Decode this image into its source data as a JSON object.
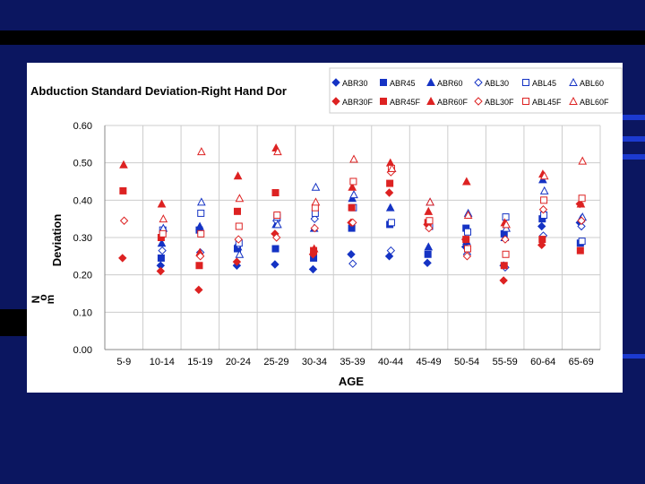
{
  "chart_data": {
    "type": "scatter",
    "title": "Abduction Standard Deviation-Right Hand Dor",
    "xlabel": "AGE",
    "ylabel": "Deviation",
    "ylabel_units": [
      "N",
      "o",
      "m"
    ],
    "ylim": [
      0,
      0.6
    ],
    "yticks": [
      "0.00",
      "0.10",
      "0.20",
      "0.30",
      "0.40",
      "0.50",
      "0.60"
    ],
    "grid": true,
    "categories": [
      "5-9",
      "10-14",
      "15-19",
      "20-24",
      "25-29",
      "30-34",
      "35-39",
      "40-44",
      "45-49",
      "50-54",
      "55-59",
      "60-64",
      "65-69"
    ],
    "legend_position": "top-right",
    "series": [
      {
        "name": "ABR30",
        "color": "#1533c4",
        "marker": "diamond",
        "filled": true,
        "values": [
          null,
          0.225,
          null,
          0.225,
          0.228,
          0.215,
          0.255,
          0.25,
          0.232,
          0.275,
          0.225,
          0.33,
          0.34
        ]
      },
      {
        "name": "ABR45",
        "color": "#1533c4",
        "marker": "square",
        "filled": true,
        "values": [
          null,
          0.245,
          0.32,
          0.27,
          0.27,
          0.245,
          0.325,
          0.335,
          0.255,
          0.325,
          0.31,
          0.35,
          0.285
        ]
      },
      {
        "name": "ABR60",
        "color": "#1533c4",
        "marker": "triangle",
        "filled": true,
        "values": [
          null,
          0.285,
          0.33,
          0.275,
          0.335,
          0.325,
          0.405,
          0.38,
          0.275,
          0.29,
          0.3,
          0.455,
          0.35
        ]
      },
      {
        "name": "ABL30",
        "color": "#1533c4",
        "marker": "diamond",
        "filled": false,
        "values": [
          null,
          0.265,
          0.26,
          0.28,
          0.345,
          0.35,
          0.23,
          0.265,
          null,
          0.255,
          0.22,
          0.305,
          0.33
        ]
      },
      {
        "name": "ABL45",
        "color": "#1533c4",
        "marker": "square",
        "filled": false,
        "values": [
          null,
          0.32,
          0.365,
          0.285,
          0.355,
          0.365,
          0.38,
          0.34,
          0.33,
          0.315,
          0.355,
          0.36,
          0.29
        ]
      },
      {
        "name": "ABL60",
        "color": "#1533c4",
        "marker": "triangle",
        "filled": false,
        "values": [
          null,
          0.325,
          0.395,
          0.255,
          0.335,
          0.435,
          0.415,
          0.485,
          0.395,
          0.365,
          0.325,
          0.425,
          0.355
        ]
      },
      {
        "name": "ABR30F",
        "color": "#dd2222",
        "marker": "diamond",
        "filled": true,
        "values": [
          0.245,
          0.21,
          0.16,
          0.235,
          0.31,
          0.255,
          0.34,
          0.42,
          0.335,
          0.295,
          0.185,
          0.28,
          0.39
        ]
      },
      {
        "name": "ABR45F",
        "color": "#dd2222",
        "marker": "square",
        "filled": true,
        "values": [
          0.425,
          0.3,
          0.225,
          0.37,
          0.42,
          0.265,
          0.38,
          0.445,
          0.34,
          0.295,
          0.225,
          0.295,
          0.265
        ]
      },
      {
        "name": "ABR60F",
        "color": "#dd2222",
        "marker": "triangle",
        "filled": true,
        "values": [
          0.495,
          0.39,
          0.26,
          0.465,
          0.54,
          0.27,
          0.435,
          0.5,
          0.37,
          0.45,
          0.34,
          0.47,
          0.39
        ]
      },
      {
        "name": "ABL30F",
        "color": "#dd2222",
        "marker": "diamond",
        "filled": false,
        "values": [
          0.345,
          null,
          0.25,
          0.295,
          0.3,
          0.325,
          0.34,
          0.475,
          0.325,
          0.25,
          0.295,
          0.375,
          0.345
        ]
      },
      {
        "name": "ABL45F",
        "color": "#dd2222",
        "marker": "square",
        "filled": false,
        "values": [
          null,
          0.31,
          0.31,
          0.33,
          0.36,
          0.38,
          0.45,
          0.485,
          0.345,
          0.27,
          0.255,
          0.4,
          0.405
        ]
      },
      {
        "name": "ABL60F",
        "color": "#dd2222",
        "marker": "triangle",
        "filled": false,
        "values": [
          null,
          0.35,
          0.53,
          0.405,
          0.53,
          0.395,
          0.51,
          0.485,
          0.395,
          0.36,
          0.335,
          0.465,
          0.505
        ]
      }
    ]
  },
  "colors": {
    "background": "#0b1660",
    "stripe": "#000000",
    "accent_bar": "#1c3ad0",
    "blue_series": "#1533c4",
    "red_series": "#dd2222",
    "grid": "#cccccc"
  }
}
